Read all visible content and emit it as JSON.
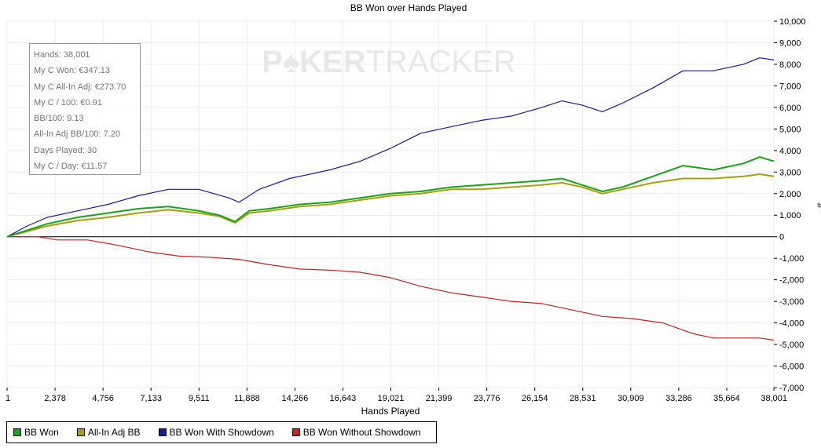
{
  "app": {
    "watermark_part1": "P",
    "watermark_part2": "KER",
    "watermark_part3": "TRACKER"
  },
  "info_box": {
    "lines": [
      "Hands: 38,001",
      "My C Won: €347.13",
      "My C All-In Adj: €273.70",
      "My C / 100: €0.91",
      "BB/100: 9.13",
      "All-In Adj BB/100: 7.20",
      "Days Played: 30",
      "My C / Day: €11.57"
    ]
  },
  "chart_data": {
    "type": "line",
    "title": "BB Won over Hands Played",
    "xlabel": "Hands Played",
    "ylabel": "#",
    "xlim": [
      1,
      38001
    ],
    "ylim": [
      -7000,
      10000
    ],
    "x_ticks": [
      1,
      2378,
      4756,
      7133,
      9511,
      11888,
      14266,
      16643,
      19021,
      21399,
      23776,
      26154,
      28531,
      30909,
      33286,
      35664,
      38001
    ],
    "x_tick_labels": [
      "1",
      "2,378",
      "4,756",
      "7,133",
      "9,511",
      "11,888",
      "14,266",
      "16,643",
      "19,021",
      "21,399",
      "23,776",
      "26,154",
      "28,531",
      "30,909",
      "33,286",
      "35,664",
      "38,001"
    ],
    "y_ticks": [
      10000,
      9000,
      8000,
      7000,
      6000,
      5000,
      4000,
      3000,
      2000,
      1000,
      0,
      -1000,
      -2000,
      -3000,
      -4000,
      -5000,
      -6000,
      -7000
    ],
    "y_tick_labels": [
      "10,000",
      "9,000",
      "8,000",
      "7,000",
      "6,000",
      "5,000",
      "4,000",
      "3,000",
      "2,000",
      "1,000",
      "0",
      "-1,000",
      "-2,000",
      "-3,000",
      "-4,000",
      "-5,000",
      "-6,000",
      "-7,000"
    ],
    "grid": true,
    "legend_position": "bottom-left",
    "series": [
      {
        "name": "BB Won",
        "color": "#1aa31a",
        "x": [
          1,
          1000,
          2000,
          3500,
          5000,
          6500,
          8000,
          9500,
          10500,
          11300,
          12000,
          13000,
          14500,
          16000,
          17500,
          19000,
          20500,
          22000,
          23500,
          25000,
          26500,
          27500,
          28500,
          29500,
          30500,
          32000,
          33500,
          35000,
          36500,
          37300,
          38001
        ],
        "y": [
          0,
          300,
          600,
          900,
          1100,
          1300,
          1400,
          1200,
          1000,
          700,
          1200,
          1300,
          1500,
          1600,
          1800,
          2000,
          2100,
          2300,
          2400,
          2500,
          2600,
          2700,
          2400,
          2100,
          2300,
          2800,
          3300,
          3100,
          3400,
          3700,
          3500
        ]
      },
      {
        "name": "All-In Adj BB",
        "color": "#a8a010",
        "x": [
          1,
          1000,
          2000,
          3500,
          5000,
          6500,
          8000,
          9500,
          10500,
          11300,
          12000,
          13000,
          14500,
          16000,
          17500,
          19000,
          20500,
          22000,
          23500,
          25000,
          26500,
          27500,
          28500,
          29500,
          30500,
          32000,
          33500,
          35000,
          36500,
          37300,
          38001
        ],
        "y": [
          0,
          250,
          500,
          750,
          900,
          1100,
          1250,
          1100,
          950,
          650,
          1100,
          1200,
          1400,
          1500,
          1700,
          1900,
          2000,
          2200,
          2200,
          2300,
          2400,
          2500,
          2300,
          2000,
          2200,
          2500,
          2700,
          2700,
          2800,
          2900,
          2800
        ]
      },
      {
        "name": "BB Won With Showdown",
        "color": "#1a1aa0",
        "x": [
          1,
          1000,
          2000,
          3500,
          5000,
          6500,
          8000,
          9500,
          11000,
          11500,
          12500,
          14000,
          16000,
          17500,
          19000,
          20500,
          22000,
          23500,
          25000,
          26500,
          27500,
          28500,
          29500,
          30500,
          32000,
          33500,
          35000,
          36500,
          37300,
          38001
        ],
        "y": [
          0,
          500,
          900,
          1200,
          1500,
          1900,
          2200,
          2200,
          1800,
          1600,
          2200,
          2700,
          3100,
          3500,
          4100,
          4800,
          5100,
          5400,
          5600,
          6000,
          6300,
          6100,
          5800,
          6200,
          6900,
          7700,
          7700,
          8000,
          8300,
          8200
        ]
      },
      {
        "name": "BB Won Without Showdown",
        "color": "#c02424",
        "x": [
          1,
          1500,
          2500,
          4000,
          5500,
          7000,
          8500,
          10000,
          11500,
          13000,
          14500,
          16000,
          17500,
          19000,
          20500,
          22000,
          23500,
          25000,
          26500,
          28000,
          29500,
          31000,
          32500,
          34000,
          35000,
          36500,
          37300,
          38001
        ],
        "y": [
          0,
          0,
          -150,
          -150,
          -400,
          -700,
          -900,
          -950,
          -1050,
          -1300,
          -1500,
          -1550,
          -1650,
          -1900,
          -2300,
          -2600,
          -2800,
          -3000,
          -3100,
          -3400,
          -3700,
          -3800,
          -4000,
          -4500,
          -4700,
          -4700,
          -4700,
          -4800
        ]
      }
    ]
  }
}
